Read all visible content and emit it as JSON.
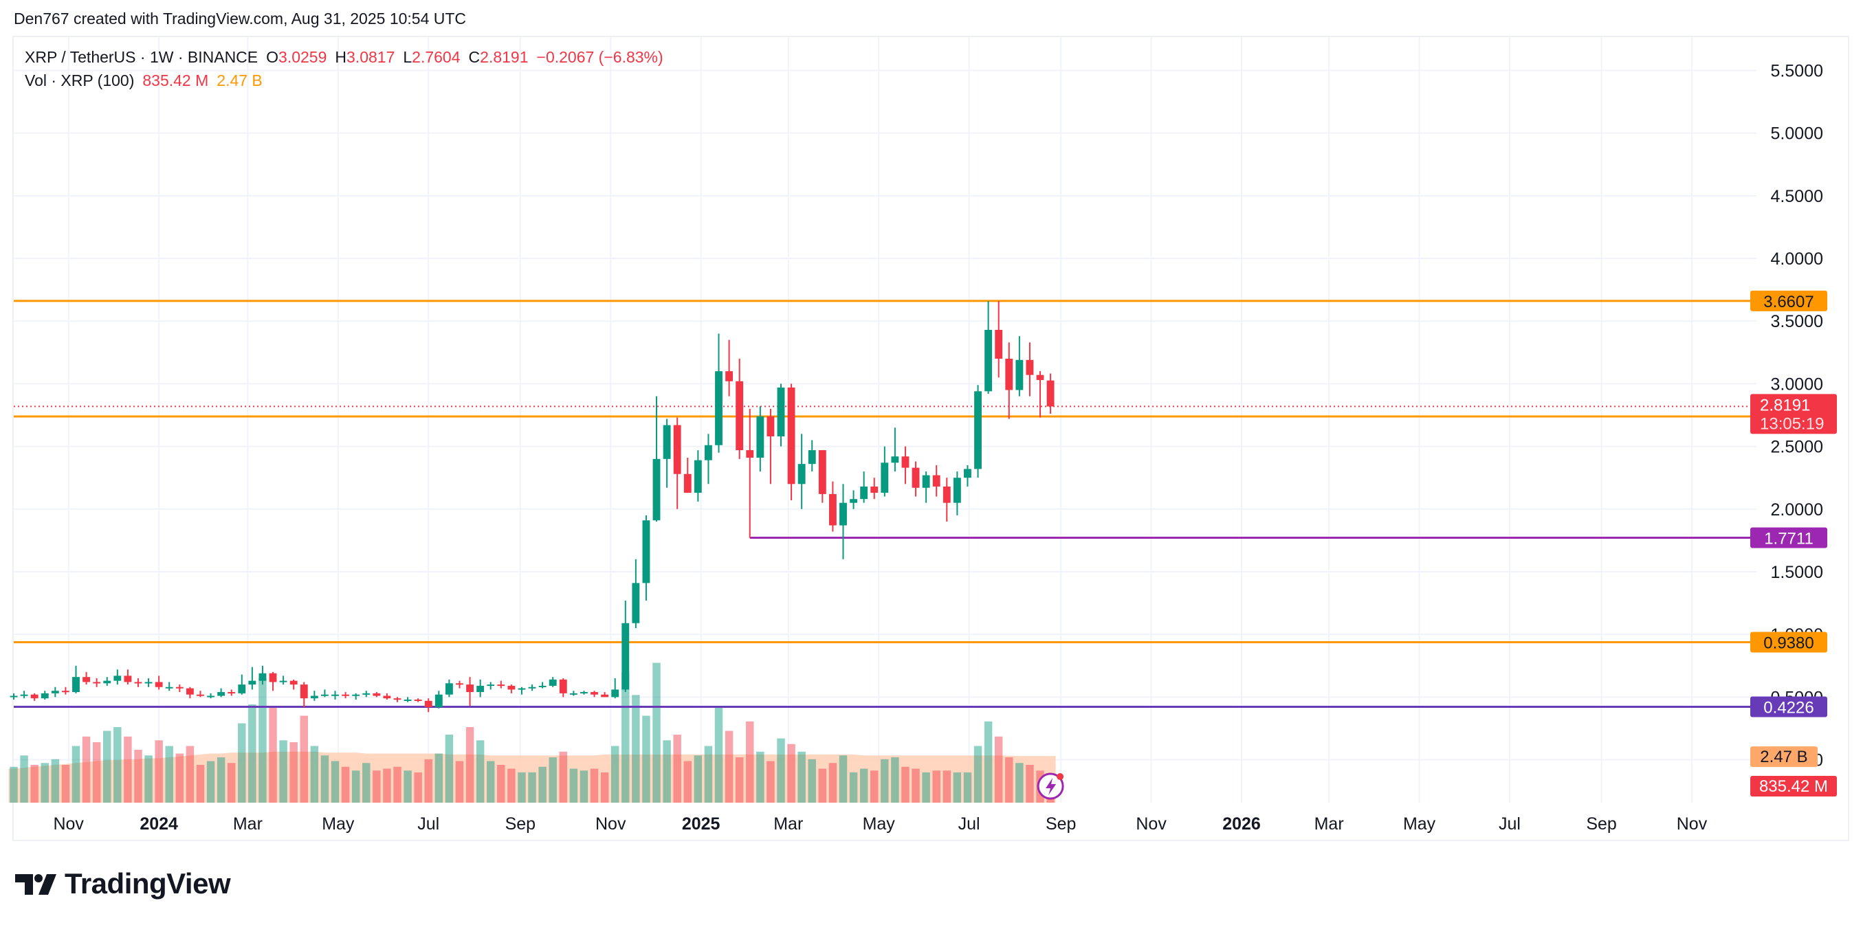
{
  "attribution": "Den767 created with TradingView.com, Aug 31, 2025 10:54 UTC",
  "legend": {
    "symbol": "XRP / TetherUS · 1W · BINANCE",
    "open_label": "O",
    "open": "3.0259",
    "high_label": "H",
    "high": "3.0817",
    "low_label": "L",
    "low": "2.7604",
    "close_label": "C",
    "close": "2.8191",
    "change": "−0.2067 (−6.83%)",
    "vol_label": "Vol · XRP (100)",
    "vol_value": "835.42 M",
    "vol_ma": "2.47 B"
  },
  "footer": {
    "logo_text": "TradingView"
  },
  "chart_data": {
    "type": "candlestick",
    "symbol": "XRP / TetherUS",
    "interval": "1W",
    "exchange": "BINANCE",
    "y_axis": {
      "ticks": [
        "5.5000",
        "5.0000",
        "4.5000",
        "4.0000",
        "3.5000",
        "3.0000",
        "2.5000",
        "2.0000",
        "1.5000",
        "1.0000",
        "0.5000",
        "0.0000"
      ],
      "range": [
        -0.2,
        5.7
      ],
      "position": "right",
      "scale": "linear"
    },
    "x_axis": {
      "labels": [
        {
          "text": "Nov",
          "date": "2023-11-01",
          "bold": false
        },
        {
          "text": "2024",
          "date": "2024-01-01",
          "bold": true
        },
        {
          "text": "Mar",
          "date": "2024-03-01",
          "bold": false
        },
        {
          "text": "May",
          "date": "2024-05-01",
          "bold": false
        },
        {
          "text": "Jul",
          "date": "2024-07-01",
          "bold": false
        },
        {
          "text": "Sep",
          "date": "2024-09-01",
          "bold": false
        },
        {
          "text": "Nov",
          "date": "2024-11-01",
          "bold": false
        },
        {
          "text": "2025",
          "date": "2025-01-01",
          "bold": true
        },
        {
          "text": "Mar",
          "date": "2025-03-01",
          "bold": false
        },
        {
          "text": "May",
          "date": "2025-05-01",
          "bold": false
        },
        {
          "text": "Jul",
          "date": "2025-07-01",
          "bold": false
        },
        {
          "text": "Sep",
          "date": "2025-09-01",
          "bold": false
        },
        {
          "text": "Nov",
          "date": "2025-11-01",
          "bold": false
        },
        {
          "text": "2026",
          "date": "2026-01-01",
          "bold": true
        },
        {
          "text": "Mar",
          "date": "2026-03-01",
          "bold": false
        },
        {
          "text": "May",
          "date": "2026-05-01",
          "bold": false
        },
        {
          "text": "Jul",
          "date": "2026-07-01",
          "bold": false
        },
        {
          "text": "Sep",
          "date": "2026-09-01",
          "bold": false
        },
        {
          "text": "Nov",
          "date": "2026-11-01",
          "bold": false
        }
      ],
      "range": [
        "2023-09-25",
        "2026-12-10"
      ]
    },
    "levels": [
      {
        "value": 3.6607,
        "label": "3.6607",
        "color": "#ff9800",
        "start": "2023-09-25"
      },
      {
        "value": 2.7387,
        "label": "2.7387",
        "color": "#ff9800",
        "start": "2023-09-25"
      },
      {
        "value": 1.7711,
        "label": "1.7711",
        "color": "#9c27b0",
        "start": "2025-02-03"
      },
      {
        "value": 0.938,
        "label": "0.9380",
        "color": "#ff9800",
        "start": "2023-09-25"
      },
      {
        "value": 0.4226,
        "label": "0.4226",
        "color": "#673ab7",
        "start": "2023-09-25"
      }
    ],
    "last_price": {
      "value": 2.8191,
      "label": "2.8191",
      "countdown": "13:05:19",
      "color": "#f23645"
    },
    "volume_labels": [
      {
        "label": "2.47 B",
        "color": "#ffa869",
        "text_color": "#131722"
      },
      {
        "label": "835.42 M",
        "color": "#f23645",
        "text_color": "#ffffff"
      }
    ],
    "colors": {
      "up": "#089981",
      "down": "#f23645",
      "grid": "#f0f3fa",
      "volume_ma_fill": "#ffcdb0"
    },
    "volume_max": 8.0,
    "volume_ma": [
      1.8,
      1.85,
      1.9,
      1.95,
      2.0,
      2.05,
      2.1,
      2.15,
      2.2,
      2.25,
      2.25,
      2.3,
      2.3,
      2.35,
      2.35,
      2.4,
      2.45,
      2.5,
      2.55,
      2.6,
      2.6,
      2.65,
      2.65,
      2.65,
      2.65,
      2.7,
      2.7,
      2.7,
      2.7,
      2.7,
      2.65,
      2.65,
      2.65,
      2.65,
      2.6,
      2.6,
      2.6,
      2.6,
      2.6,
      2.6,
      2.6,
      2.6,
      2.55,
      2.55,
      2.55,
      2.55,
      2.5,
      2.5,
      2.5,
      2.5,
      2.5,
      2.5,
      2.5,
      2.5,
      2.5,
      2.5,
      2.5,
      2.55,
      2.55,
      2.55,
      2.55,
      2.55,
      2.55,
      2.55,
      2.55,
      2.55,
      2.55,
      2.55,
      2.55,
      2.55,
      2.55,
      2.55,
      2.55,
      2.55,
      2.55,
      2.55,
      2.55,
      2.55,
      2.55,
      2.55,
      2.55,
      2.55,
      2.5,
      2.5,
      2.5,
      2.5,
      2.5,
      2.5,
      2.5,
      2.5,
      2.5,
      2.5,
      2.5,
      2.5,
      2.5,
      2.5,
      2.48,
      2.47
    ],
    "candles": [
      {
        "date": "2023-09-25",
        "o": 0.5,
        "h": 0.53,
        "l": 0.48,
        "c": 0.51,
        "v": 1.9
      },
      {
        "date": "2023-10-02",
        "o": 0.51,
        "h": 0.55,
        "l": 0.49,
        "c": 0.52,
        "v": 2.5
      },
      {
        "date": "2023-10-09",
        "o": 0.52,
        "h": 0.53,
        "l": 0.47,
        "c": 0.49,
        "v": 2.0
      },
      {
        "date": "2023-10-16",
        "o": 0.49,
        "h": 0.55,
        "l": 0.48,
        "c": 0.53,
        "v": 2.1
      },
      {
        "date": "2023-10-23",
        "o": 0.53,
        "h": 0.58,
        "l": 0.5,
        "c": 0.55,
        "v": 2.3
      },
      {
        "date": "2023-10-30",
        "o": 0.55,
        "h": 0.58,
        "l": 0.52,
        "c": 0.54,
        "v": 2.0
      },
      {
        "date": "2023-11-06",
        "o": 0.54,
        "h": 0.75,
        "l": 0.53,
        "c": 0.66,
        "v": 3.0
      },
      {
        "date": "2023-11-13",
        "o": 0.66,
        "h": 0.7,
        "l": 0.6,
        "c": 0.62,
        "v": 3.5
      },
      {
        "date": "2023-11-20",
        "o": 0.62,
        "h": 0.65,
        "l": 0.58,
        "c": 0.61,
        "v": 3.2
      },
      {
        "date": "2023-11-27",
        "o": 0.61,
        "h": 0.66,
        "l": 0.59,
        "c": 0.63,
        "v": 3.8
      },
      {
        "date": "2023-12-04",
        "o": 0.63,
        "h": 0.72,
        "l": 0.6,
        "c": 0.67,
        "v": 4.0
      },
      {
        "date": "2023-12-11",
        "o": 0.67,
        "h": 0.72,
        "l": 0.6,
        "c": 0.62,
        "v": 3.5
      },
      {
        "date": "2023-12-18",
        "o": 0.62,
        "h": 0.65,
        "l": 0.58,
        "c": 0.61,
        "v": 2.8
      },
      {
        "date": "2023-12-25",
        "o": 0.61,
        "h": 0.65,
        "l": 0.58,
        "c": 0.62,
        "v": 2.5
      },
      {
        "date": "2024-01-01",
        "o": 0.62,
        "h": 0.67,
        "l": 0.56,
        "c": 0.58,
        "v": 3.3
      },
      {
        "date": "2024-01-08",
        "o": 0.58,
        "h": 0.62,
        "l": 0.55,
        "c": 0.58,
        "v": 3.0
      },
      {
        "date": "2024-01-15",
        "o": 0.58,
        "h": 0.6,
        "l": 0.54,
        "c": 0.57,
        "v": 2.6
      },
      {
        "date": "2024-01-22",
        "o": 0.57,
        "h": 0.58,
        "l": 0.49,
        "c": 0.52,
        "v": 3.0
      },
      {
        "date": "2024-01-29",
        "o": 0.52,
        "h": 0.55,
        "l": 0.5,
        "c": 0.51,
        "v": 2.0
      },
      {
        "date": "2024-02-05",
        "o": 0.51,
        "h": 0.53,
        "l": 0.49,
        "c": 0.51,
        "v": 2.2
      },
      {
        "date": "2024-02-12",
        "o": 0.51,
        "h": 0.57,
        "l": 0.5,
        "c": 0.54,
        "v": 2.4
      },
      {
        "date": "2024-02-19",
        "o": 0.54,
        "h": 0.56,
        "l": 0.51,
        "c": 0.53,
        "v": 2.1
      },
      {
        "date": "2024-02-26",
        "o": 0.53,
        "h": 0.68,
        "l": 0.52,
        "c": 0.6,
        "v": 4.2
      },
      {
        "date": "2024-03-04",
        "o": 0.6,
        "h": 0.74,
        "l": 0.56,
        "c": 0.63,
        "v": 5.2
      },
      {
        "date": "2024-03-11",
        "o": 0.63,
        "h": 0.75,
        "l": 0.6,
        "c": 0.69,
        "v": 6.6
      },
      {
        "date": "2024-03-18",
        "o": 0.69,
        "h": 0.7,
        "l": 0.55,
        "c": 0.62,
        "v": 5.1
      },
      {
        "date": "2024-03-25",
        "o": 0.62,
        "h": 0.67,
        "l": 0.6,
        "c": 0.63,
        "v": 3.3
      },
      {
        "date": "2024-04-01",
        "o": 0.63,
        "h": 0.64,
        "l": 0.56,
        "c": 0.6,
        "v": 3.2
      },
      {
        "date": "2024-04-08",
        "o": 0.6,
        "h": 0.62,
        "l": 0.42,
        "c": 0.49,
        "v": 4.6
      },
      {
        "date": "2024-04-15",
        "o": 0.49,
        "h": 0.55,
        "l": 0.47,
        "c": 0.51,
        "v": 3.0
      },
      {
        "date": "2024-04-22",
        "o": 0.51,
        "h": 0.56,
        "l": 0.5,
        "c": 0.52,
        "v": 2.5
      },
      {
        "date": "2024-04-29",
        "o": 0.52,
        "h": 0.55,
        "l": 0.48,
        "c": 0.52,
        "v": 2.2
      },
      {
        "date": "2024-05-06",
        "o": 0.52,
        "h": 0.54,
        "l": 0.49,
        "c": 0.51,
        "v": 1.9
      },
      {
        "date": "2024-05-13",
        "o": 0.51,
        "h": 0.53,
        "l": 0.48,
        "c": 0.52,
        "v": 1.7
      },
      {
        "date": "2024-05-20",
        "o": 0.52,
        "h": 0.55,
        "l": 0.5,
        "c": 0.53,
        "v": 2.1
      },
      {
        "date": "2024-05-27",
        "o": 0.53,
        "h": 0.54,
        "l": 0.5,
        "c": 0.51,
        "v": 1.7
      },
      {
        "date": "2024-06-03",
        "o": 0.51,
        "h": 0.53,
        "l": 0.48,
        "c": 0.49,
        "v": 1.8
      },
      {
        "date": "2024-06-10",
        "o": 0.49,
        "h": 0.5,
        "l": 0.46,
        "c": 0.48,
        "v": 1.9
      },
      {
        "date": "2024-06-17",
        "o": 0.48,
        "h": 0.5,
        "l": 0.46,
        "c": 0.48,
        "v": 1.7
      },
      {
        "date": "2024-06-24",
        "o": 0.48,
        "h": 0.49,
        "l": 0.46,
        "c": 0.47,
        "v": 1.6
      },
      {
        "date": "2024-07-01",
        "o": 0.47,
        "h": 0.49,
        "l": 0.38,
        "c": 0.42,
        "v": 2.3
      },
      {
        "date": "2024-07-08",
        "o": 0.42,
        "h": 0.55,
        "l": 0.41,
        "c": 0.52,
        "v": 2.6
      },
      {
        "date": "2024-07-15",
        "o": 0.52,
        "h": 0.64,
        "l": 0.5,
        "c": 0.61,
        "v": 3.6
      },
      {
        "date": "2024-07-22",
        "o": 0.61,
        "h": 0.63,
        "l": 0.57,
        "c": 0.6,
        "v": 2.2
      },
      {
        "date": "2024-07-29",
        "o": 0.6,
        "h": 0.66,
        "l": 0.43,
        "c": 0.54,
        "v": 4.0
      },
      {
        "date": "2024-08-05",
        "o": 0.54,
        "h": 0.64,
        "l": 0.5,
        "c": 0.59,
        "v": 3.3
      },
      {
        "date": "2024-08-12",
        "o": 0.59,
        "h": 0.62,
        "l": 0.56,
        "c": 0.6,
        "v": 2.2
      },
      {
        "date": "2024-08-19",
        "o": 0.6,
        "h": 0.63,
        "l": 0.57,
        "c": 0.59,
        "v": 2.0
      },
      {
        "date": "2024-08-26",
        "o": 0.59,
        "h": 0.6,
        "l": 0.53,
        "c": 0.56,
        "v": 1.8
      },
      {
        "date": "2024-09-02",
        "o": 0.56,
        "h": 0.58,
        "l": 0.52,
        "c": 0.57,
        "v": 1.6
      },
      {
        "date": "2024-09-09",
        "o": 0.57,
        "h": 0.6,
        "l": 0.55,
        "c": 0.58,
        "v": 1.6
      },
      {
        "date": "2024-09-16",
        "o": 0.58,
        "h": 0.62,
        "l": 0.57,
        "c": 0.59,
        "v": 1.9
      },
      {
        "date": "2024-09-23",
        "o": 0.59,
        "h": 0.66,
        "l": 0.58,
        "c": 0.64,
        "v": 2.4
      },
      {
        "date": "2024-09-30",
        "o": 0.64,
        "h": 0.65,
        "l": 0.5,
        "c": 0.53,
        "v": 2.7
      },
      {
        "date": "2024-10-07",
        "o": 0.53,
        "h": 0.55,
        "l": 0.51,
        "c": 0.53,
        "v": 1.8
      },
      {
        "date": "2024-10-14",
        "o": 0.53,
        "h": 0.55,
        "l": 0.52,
        "c": 0.54,
        "v": 1.7
      },
      {
        "date": "2024-10-21",
        "o": 0.54,
        "h": 0.55,
        "l": 0.5,
        "c": 0.52,
        "v": 1.8
      },
      {
        "date": "2024-10-28",
        "o": 0.52,
        "h": 0.54,
        "l": 0.5,
        "c": 0.5,
        "v": 1.6
      },
      {
        "date": "2024-11-04",
        "o": 0.5,
        "h": 0.65,
        "l": 0.49,
        "c": 0.56,
        "v": 3.0
      },
      {
        "date": "2024-11-11",
        "o": 0.56,
        "h": 1.27,
        "l": 0.54,
        "c": 1.09,
        "v": 6.9
      },
      {
        "date": "2024-11-18",
        "o": 1.09,
        "h": 1.6,
        "l": 1.05,
        "c": 1.41,
        "v": 5.7
      },
      {
        "date": "2024-11-25",
        "o": 1.41,
        "h": 1.95,
        "l": 1.27,
        "c": 1.91,
        "v": 4.6
      },
      {
        "date": "2024-12-02",
        "o": 1.91,
        "h": 2.9,
        "l": 1.9,
        "c": 2.4,
        "v": 7.4
      },
      {
        "date": "2024-12-09",
        "o": 2.4,
        "h": 2.72,
        "l": 2.17,
        "c": 2.67,
        "v": 3.3
      },
      {
        "date": "2024-12-16",
        "o": 2.67,
        "h": 2.73,
        "l": 2.0,
        "c": 2.28,
        "v": 3.6
      },
      {
        "date": "2024-12-23",
        "o": 2.28,
        "h": 2.41,
        "l": 2.13,
        "c": 2.13,
        "v": 2.2
      },
      {
        "date": "2024-12-30",
        "o": 2.13,
        "h": 2.47,
        "l": 2.06,
        "c": 2.39,
        "v": 2.5
      },
      {
        "date": "2025-01-06",
        "o": 2.39,
        "h": 2.6,
        "l": 2.2,
        "c": 2.51,
        "v": 3.0
      },
      {
        "date": "2025-01-13",
        "o": 2.51,
        "h": 3.4,
        "l": 2.45,
        "c": 3.1,
        "v": 5.1
      },
      {
        "date": "2025-01-20",
        "o": 3.1,
        "h": 3.35,
        "l": 2.9,
        "c": 3.02,
        "v": 3.8
      },
      {
        "date": "2025-01-27",
        "o": 3.02,
        "h": 3.2,
        "l": 2.4,
        "c": 2.47,
        "v": 2.4
      },
      {
        "date": "2025-02-03",
        "o": 2.47,
        "h": 2.8,
        "l": 1.77,
        "c": 2.41,
        "v": 4.3
      },
      {
        "date": "2025-02-10",
        "o": 2.41,
        "h": 2.82,
        "l": 2.3,
        "c": 2.74,
        "v": 2.7
      },
      {
        "date": "2025-02-17",
        "o": 2.74,
        "h": 2.8,
        "l": 2.2,
        "c": 2.58,
        "v": 2.2
      },
      {
        "date": "2025-02-24",
        "o": 2.58,
        "h": 3.0,
        "l": 2.5,
        "c": 2.97,
        "v": 3.4
      },
      {
        "date": "2025-03-03",
        "o": 2.97,
        "h": 3.0,
        "l": 2.07,
        "c": 2.2,
        "v": 3.1
      },
      {
        "date": "2025-03-10",
        "o": 2.2,
        "h": 2.6,
        "l": 2.0,
        "c": 2.36,
        "v": 2.7
      },
      {
        "date": "2025-03-17",
        "o": 2.36,
        "h": 2.55,
        "l": 2.3,
        "c": 2.47,
        "v": 2.3
      },
      {
        "date": "2025-03-24",
        "o": 2.47,
        "h": 2.47,
        "l": 2.05,
        "c": 2.12,
        "v": 1.8
      },
      {
        "date": "2025-03-31",
        "o": 2.12,
        "h": 2.22,
        "l": 1.82,
        "c": 1.87,
        "v": 2.1
      },
      {
        "date": "2025-04-07",
        "o": 1.87,
        "h": 2.2,
        "l": 1.6,
        "c": 2.05,
        "v": 2.5
      },
      {
        "date": "2025-04-14",
        "o": 2.05,
        "h": 2.15,
        "l": 2.0,
        "c": 2.08,
        "v": 1.6
      },
      {
        "date": "2025-04-21",
        "o": 2.08,
        "h": 2.3,
        "l": 2.05,
        "c": 2.18,
        "v": 1.8
      },
      {
        "date": "2025-04-28",
        "o": 2.18,
        "h": 2.25,
        "l": 2.08,
        "c": 2.13,
        "v": 1.7
      },
      {
        "date": "2025-05-05",
        "o": 2.13,
        "h": 2.5,
        "l": 2.1,
        "c": 2.37,
        "v": 2.3
      },
      {
        "date": "2025-05-12",
        "o": 2.37,
        "h": 2.65,
        "l": 2.3,
        "c": 2.42,
        "v": 2.4
      },
      {
        "date": "2025-05-19",
        "o": 2.42,
        "h": 2.5,
        "l": 2.2,
        "c": 2.33,
        "v": 1.9
      },
      {
        "date": "2025-05-26",
        "o": 2.33,
        "h": 2.38,
        "l": 2.1,
        "c": 2.17,
        "v": 1.8
      },
      {
        "date": "2025-06-02",
        "o": 2.17,
        "h": 2.3,
        "l": 2.05,
        "c": 2.27,
        "v": 1.6
      },
      {
        "date": "2025-06-09",
        "o": 2.27,
        "h": 2.35,
        "l": 2.1,
        "c": 2.18,
        "v": 1.7
      },
      {
        "date": "2025-06-16",
        "o": 2.18,
        "h": 2.25,
        "l": 1.9,
        "c": 2.05,
        "v": 1.7
      },
      {
        "date": "2025-06-23",
        "o": 2.05,
        "h": 2.3,
        "l": 1.95,
        "c": 2.25,
        "v": 1.6
      },
      {
        "date": "2025-06-30",
        "o": 2.25,
        "h": 2.35,
        "l": 2.18,
        "c": 2.32,
        "v": 1.6
      },
      {
        "date": "2025-07-07",
        "o": 2.32,
        "h": 2.99,
        "l": 2.25,
        "c": 2.94,
        "v": 3.0
      },
      {
        "date": "2025-07-14",
        "o": 2.94,
        "h": 3.66,
        "l": 2.92,
        "c": 3.43,
        "v": 4.3
      },
      {
        "date": "2025-07-21",
        "o": 3.43,
        "h": 3.66,
        "l": 3.05,
        "c": 3.2,
        "v": 3.5
      },
      {
        "date": "2025-07-28",
        "o": 3.2,
        "h": 3.33,
        "l": 2.72,
        "c": 2.95,
        "v": 2.4
      },
      {
        "date": "2025-08-04",
        "o": 2.95,
        "h": 3.38,
        "l": 2.9,
        "c": 3.19,
        "v": 2.1
      },
      {
        "date": "2025-08-11",
        "o": 3.19,
        "h": 3.33,
        "l": 2.9,
        "c": 3.07,
        "v": 2.0
      },
      {
        "date": "2025-08-18",
        "o": 3.07,
        "h": 3.1,
        "l": 2.73,
        "c": 3.03,
        "v": 1.7
      },
      {
        "date": "2025-08-25",
        "o": 3.0259,
        "h": 3.0817,
        "l": 2.7604,
        "c": 2.8191,
        "v": 0.835
      }
    ]
  }
}
